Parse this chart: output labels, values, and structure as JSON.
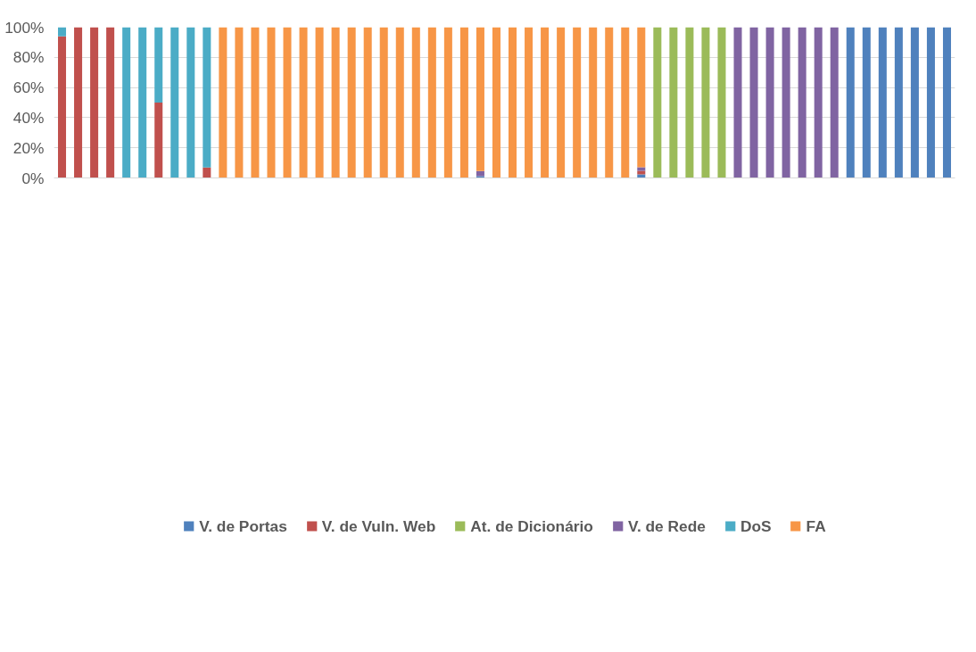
{
  "chart_data": {
    "type": "bar",
    "stacked": true,
    "categories": [
      null,
      null,
      null,
      null,
      null,
      null,
      null,
      null,
      null,
      null,
      null,
      null,
      null,
      null,
      null,
      null,
      null,
      null,
      null,
      null,
      null,
      null,
      null,
      null,
      null,
      null,
      null,
      null,
      null,
      null,
      null,
      null,
      null,
      null,
      null,
      null,
      null,
      null,
      null,
      null,
      null,
      null,
      null,
      null,
      null,
      null,
      null,
      null,
      null,
      null,
      null,
      null,
      null,
      null,
      null,
      null
    ],
    "ylim": [
      0,
      100
    ],
    "yticks": [
      {
        "value": 0,
        "label": "0%"
      },
      {
        "value": 20,
        "label": "20%"
      },
      {
        "value": 40,
        "label": "40%"
      },
      {
        "value": 60,
        "label": "60%"
      },
      {
        "value": 80,
        "label": "80%"
      },
      {
        "value": 100,
        "label": "100%"
      }
    ],
    "grid": "y",
    "legend": "bottom",
    "series": [
      {
        "name": "V. de Portas",
        "color": "#4f81bd",
        "values": [
          null,
          null,
          null,
          null,
          null,
          null,
          null,
          null,
          null,
          null,
          null,
          null,
          null,
          null,
          null,
          null,
          null,
          null,
          null,
          null,
          null,
          null,
          null,
          null,
          null,
          null,
          1.2,
          null,
          null,
          null,
          null,
          null,
          null,
          null,
          null,
          null,
          2.4,
          null,
          null,
          null,
          null,
          null,
          null,
          null,
          null,
          null,
          null,
          null,
          null,
          100,
          100,
          100,
          100,
          100,
          100,
          100
        ]
      },
      {
        "name": "V. de Vuln. Web",
        "color": "#c0504d",
        "values": [
          94,
          100,
          100,
          100,
          null,
          null,
          50,
          null,
          null,
          7,
          null,
          null,
          null,
          null,
          null,
          null,
          null,
          null,
          null,
          null,
          null,
          null,
          null,
          null,
          null,
          null,
          null,
          null,
          null,
          null,
          null,
          null,
          null,
          null,
          null,
          null,
          2.3,
          null,
          null,
          null,
          null,
          null,
          null,
          null,
          null,
          null,
          null,
          null,
          null,
          null,
          null,
          null,
          null,
          null,
          null,
          null
        ]
      },
      {
        "name": "At. de Dicionário",
        "color": "#9bbb59",
        "values": [
          null,
          null,
          null,
          null,
          null,
          null,
          null,
          null,
          null,
          null,
          null,
          null,
          null,
          null,
          null,
          null,
          null,
          null,
          null,
          null,
          null,
          null,
          null,
          null,
          null,
          null,
          null,
          null,
          null,
          null,
          null,
          null,
          null,
          null,
          null,
          null,
          null,
          100,
          100,
          100,
          100,
          100,
          null,
          null,
          null,
          null,
          null,
          null,
          null,
          null,
          null,
          null,
          null,
          null,
          null,
          null
        ]
      },
      {
        "name": "V. de Rede",
        "color": "#8064a2",
        "values": [
          null,
          null,
          null,
          null,
          null,
          null,
          null,
          null,
          null,
          null,
          null,
          null,
          null,
          null,
          null,
          null,
          null,
          null,
          null,
          null,
          null,
          null,
          null,
          null,
          null,
          null,
          3.4,
          null,
          null,
          null,
          null,
          null,
          null,
          null,
          null,
          null,
          2.4,
          null,
          null,
          null,
          null,
          null,
          100,
          100,
          100,
          100,
          100,
          100,
          100,
          null,
          null,
          null,
          null,
          null,
          null,
          null
        ]
      },
      {
        "name": "DoS",
        "color": "#4bacc6",
        "values": [
          6,
          null,
          null,
          null,
          100,
          100,
          50,
          100,
          100,
          93,
          null,
          null,
          null,
          null,
          null,
          null,
          null,
          null,
          null,
          null,
          null,
          null,
          null,
          null,
          null,
          null,
          null,
          null,
          null,
          null,
          null,
          null,
          null,
          null,
          null,
          null,
          null,
          null,
          null,
          null,
          null,
          null,
          null,
          null,
          null,
          null,
          null,
          null,
          null,
          null,
          null,
          null,
          null,
          null,
          null,
          null
        ]
      },
      {
        "name": "FA",
        "color": "#f79646",
        "values": [
          null,
          null,
          null,
          null,
          null,
          null,
          null,
          null,
          null,
          null,
          100,
          100,
          100,
          100,
          100,
          100,
          100,
          100,
          100,
          100,
          100,
          100,
          100,
          100,
          100,
          100,
          95.4,
          100,
          100,
          100,
          100,
          100,
          100,
          100,
          100,
          100,
          92.9,
          null,
          null,
          null,
          null,
          null,
          null,
          null,
          null,
          null,
          null,
          null,
          null,
          null,
          null,
          null,
          null,
          null,
          null,
          null
        ]
      }
    ]
  }
}
